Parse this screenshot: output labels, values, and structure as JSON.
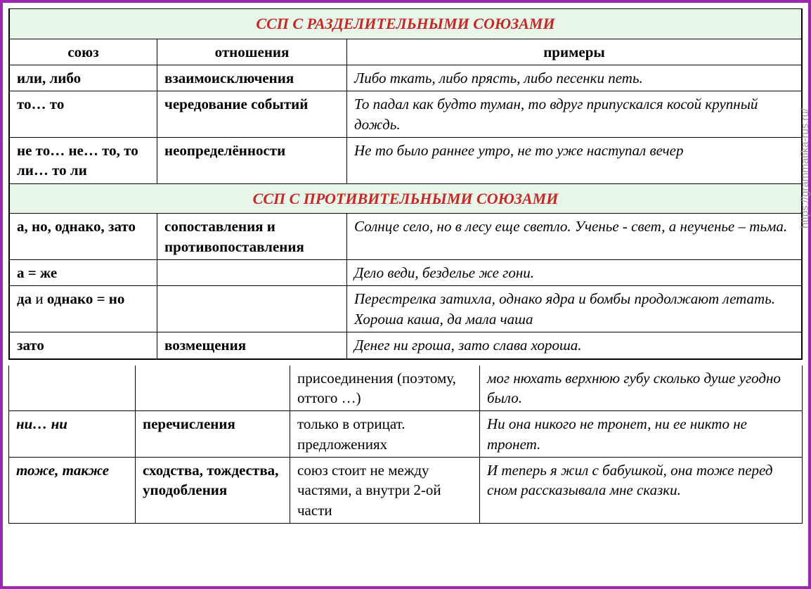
{
  "sections": {
    "s1": {
      "title": "ССП С РАЗДЕЛИТЕЛЬНЫМИ СОЮЗАМИ",
      "headers": {
        "union": "союз",
        "rel": "отношения",
        "ex": "примеры"
      },
      "rows": [
        {
          "union": "или, либо",
          "rel": "взаимоисключения",
          "ex": "Либо ткать, либо прясть, либо песенки петь."
        },
        {
          "union": "то… то",
          "rel": "чередование событий",
          "ex": "То падал как будто туман, то вдруг припускался косой крупный дождь."
        },
        {
          "union": "не то… не… то, то ли… то ли",
          "rel": "неопределённости",
          "ex": "Не то было раннее утро, не то уже наступал вечер"
        }
      ]
    },
    "s2": {
      "title": "ССП С ПРОТИВИТЕЛЬНЫМИ СОЮЗАМИ",
      "rows": [
        {
          "union": "а, но, однако, зато",
          "rel": "сопоставления и противопоставления",
          "ex": "Солнце село, но в лесу еще светло. Ученье - свет, а неученье – тьма."
        },
        {
          "union": "а = же",
          "rel": "",
          "ex": "Дело веди, безделье же гони."
        },
        {
          "union_pre": "да ",
          "union_and": "и",
          "union_post": " однако = но",
          "rel": "",
          "ex": "Перестрелка затихла, однако ядра и бомбы продолжают летать. Хороша каша, да мала чаша"
        },
        {
          "union": "зато",
          "rel": "возмещения",
          "ex": "Денег ни гроша, зато слава хороша."
        }
      ]
    },
    "s3": {
      "rows": [
        {
          "union": "",
          "rel": "",
          "cond": "присоединения (поэтому, оттого …)",
          "ex": "мог нюхать верхнюю губу сколько душе угодно было."
        },
        {
          "union": "ни… ни",
          "rel": "перечисления",
          "cond": "только в отрицат. предложениях",
          "ex": "Ни она никого не тронет, ни ее никто не тронет."
        },
        {
          "union": "тоже, также",
          "rel": "сходства, тождества, уподобления",
          "cond": "союз стоит не между частями, а внутри 2-ой части",
          "ex": "И теперь я жил с бабушкой, она тоже перед сном рассказывала мне сказки."
        }
      ]
    }
  },
  "watermark": "https://grammatika-rus.ru/",
  "colors": {
    "border": "#9c27b0",
    "header_bg": "#e8f5e9",
    "header_text": "#c62828"
  }
}
